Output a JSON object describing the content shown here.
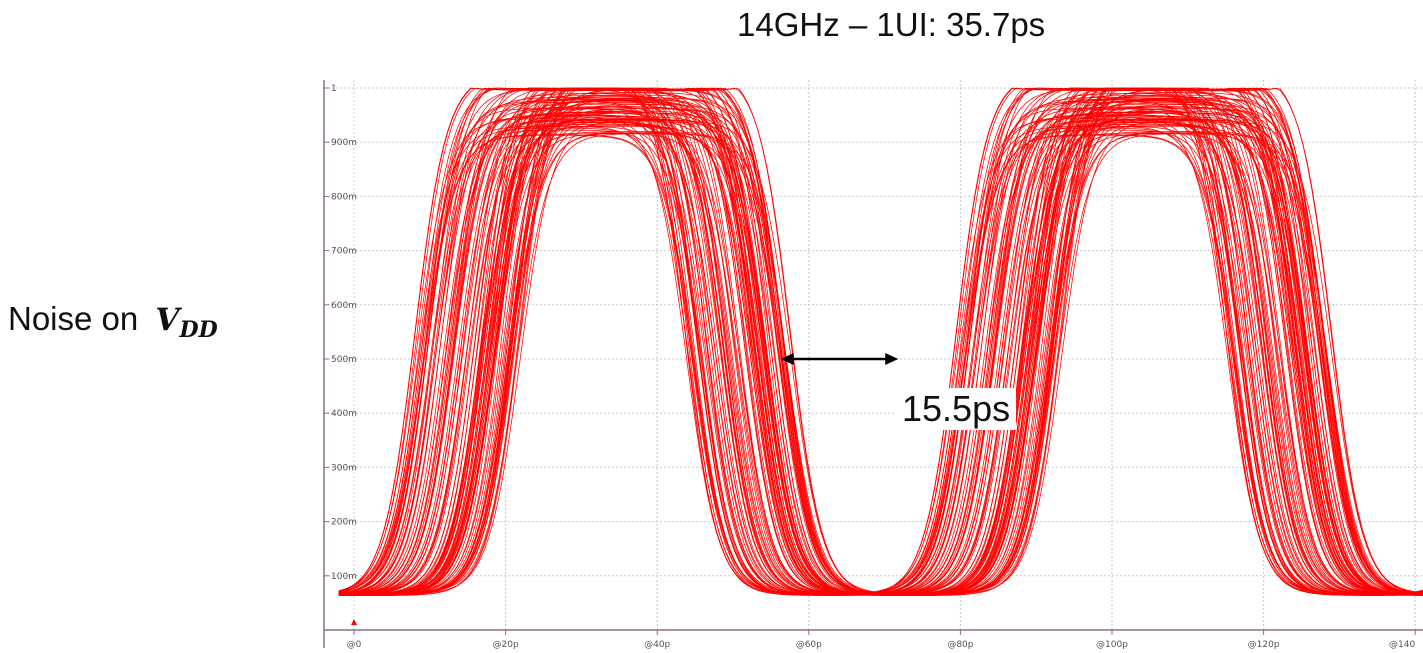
{
  "title": "14GHz – 1UI: 35.7ps",
  "side_label": {
    "text": "Noise on ",
    "symbol": "V",
    "subscript": "DD"
  },
  "annotation": {
    "text": "15.5ps"
  },
  "colors": {
    "trace": "#ff0000",
    "grid": "#c8c8c8",
    "axis": "#8c6e8c",
    "arrow": "#000000"
  },
  "chart_data": {
    "type": "line",
    "title": "14GHz – 1UI: 35.7ps",
    "xlabel": "",
    "ylabel": "",
    "x_ticks": [
      "@0",
      "@20p",
      "@40p",
      "@60p",
      "@80p",
      "@100p",
      "@120p",
      "@140"
    ],
    "y_ticks": [
      "100m",
      "200m",
      "300m",
      "400m",
      "500m",
      "600m",
      "700m",
      "800m",
      "900m",
      "1"
    ],
    "xlim": [
      0,
      140
    ],
    "ylim": [
      0,
      1
    ],
    "grid": true,
    "unit_interval_ps": 35.7,
    "annotation": {
      "text": "15.5ps",
      "y": 0.5,
      "x_start": 56.3,
      "x_end": 71.8
    }
  }
}
